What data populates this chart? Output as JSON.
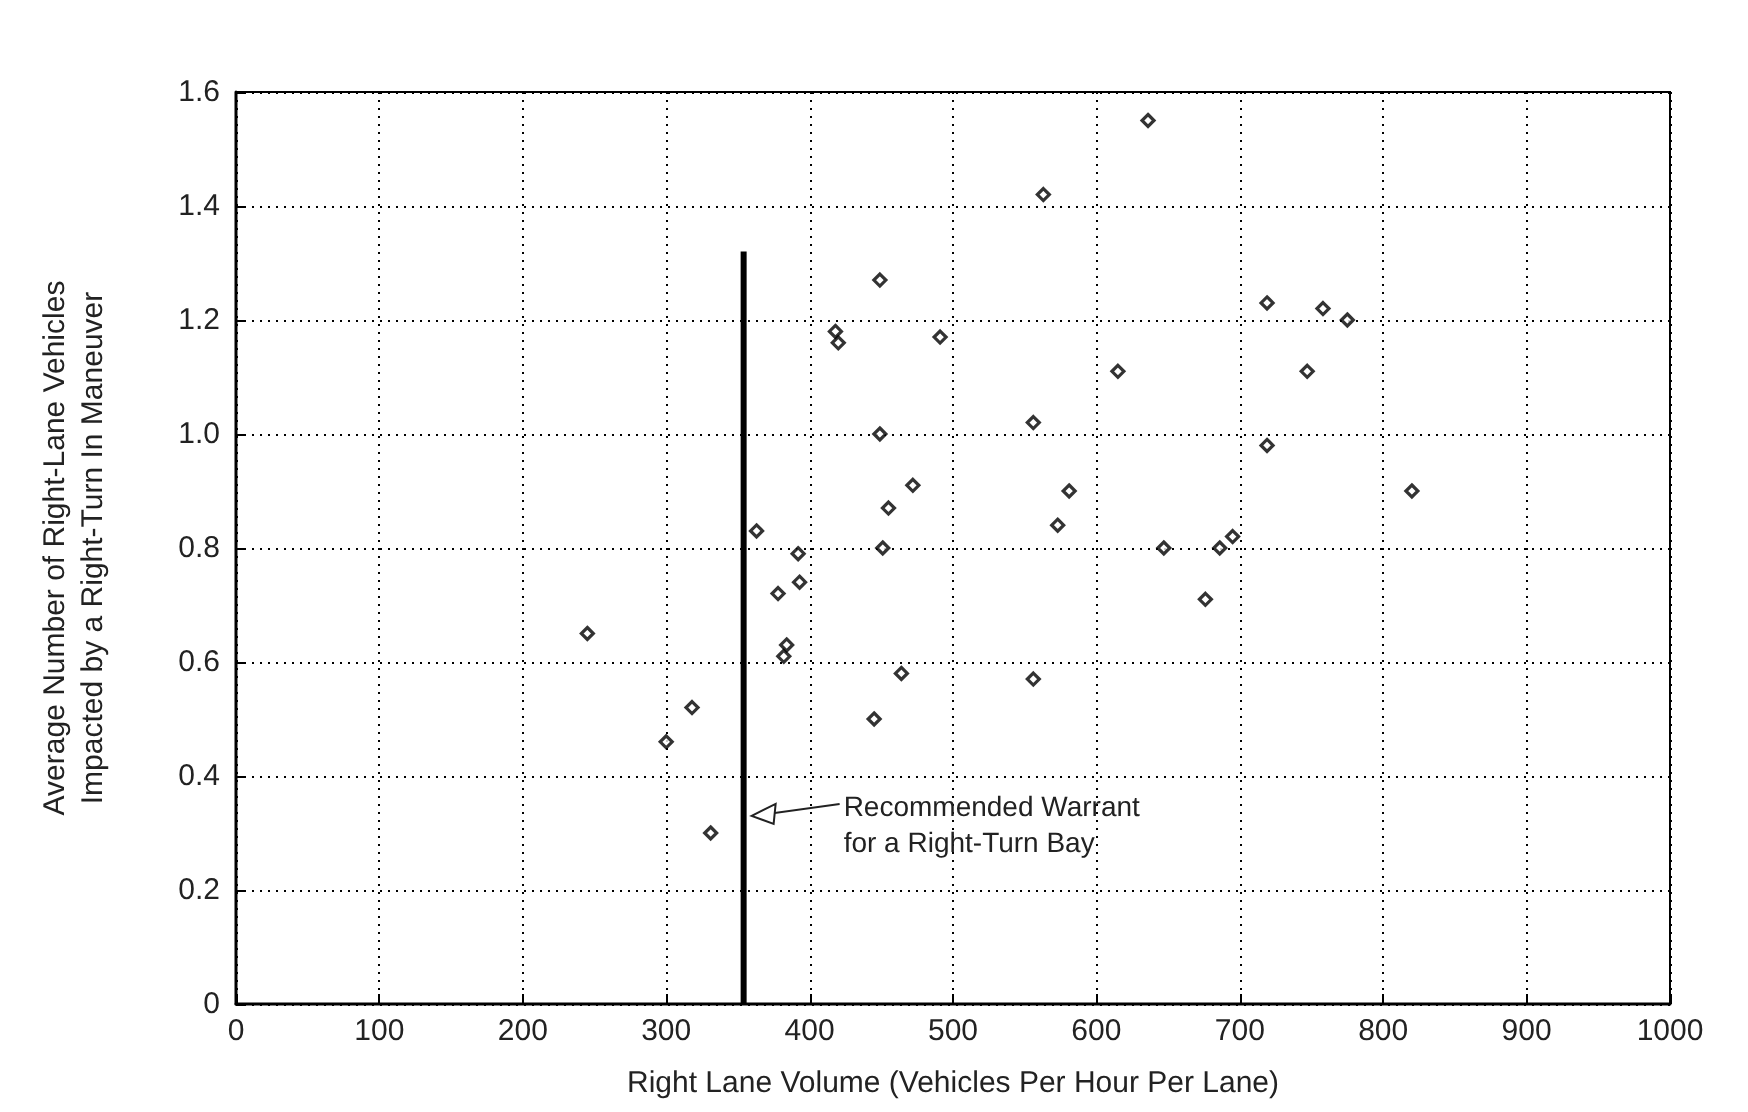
{
  "chart_data": {
    "type": "scatter",
    "xlabel": "Right Lane Volume (Vehicles Per Hour Per Lane)",
    "ylabel": "Average Number of Right-Lane Vehicles\nImpacted by a Right-Turn In Maneuver",
    "xlim": [
      0,
      1000
    ],
    "xticks": [
      0,
      100,
      200,
      300,
      400,
      500,
      600,
      700,
      800,
      900,
      1000
    ],
    "ylim": [
      0,
      1.6
    ],
    "yticks": [
      0,
      0.2,
      0.4,
      0.6,
      0.8,
      {
        "value": 1,
        "label": "1.0"
      },
      1.2,
      1.4,
      1.6
    ],
    "grid": true,
    "marker": "diamond",
    "series": [
      {
        "color": "#000000",
        "x": [
          245,
          300,
          318,
          331,
          363,
          378,
          382,
          384,
          392,
          393,
          418,
          420,
          445,
          449,
          449,
          451,
          455,
          464,
          472,
          491,
          556,
          556,
          563,
          573,
          581,
          615,
          636,
          647,
          676,
          686,
          695,
          719,
          719,
          747,
          758,
          775,
          820
        ],
        "values": [
          0.65,
          0.46,
          0.52,
          0.3,
          0.83,
          0.72,
          0.61,
          0.63,
          0.79,
          0.74,
          1.18,
          1.16,
          0.5,
          1.27,
          1.0,
          0.8,
          0.87,
          0.58,
          0.91,
          1.17,
          1.02,
          0.57,
          1.42,
          0.84,
          0.9,
          1.11,
          1.55,
          0.8,
          0.71,
          0.8,
          0.82,
          1.23,
          0.98,
          1.11,
          1.22,
          1.2,
          0.9
        ]
      },
      {
        "type": "line",
        "color": "#000000",
        "marker": "none",
        "x": [
          354,
          354
        ],
        "values": [
          0,
          1.32
        ]
      }
    ],
    "annotations": [
      {
        "text": "Recommended Warrant\nfor a Right-Turn Bay",
        "x": 354,
        "y": 0.33
      }
    ]
  }
}
